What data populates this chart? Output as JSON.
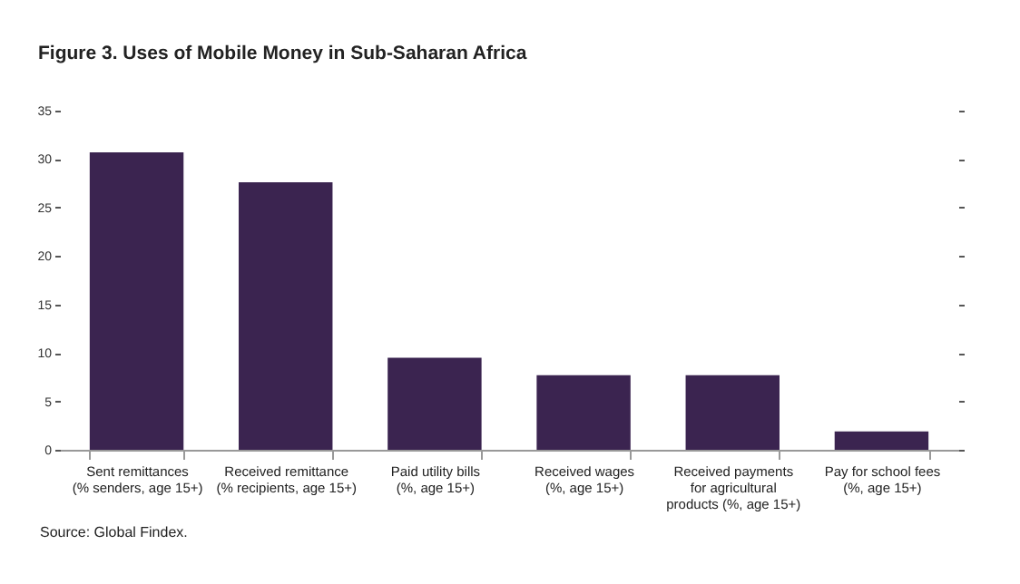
{
  "chart_data": {
    "type": "bar",
    "title": "Figure 3. Uses of Mobile Money in Sub-Saharan Africa",
    "categories": [
      "Sent remittances\n(% senders, age 15+)",
      "Received remittance\n(% recipients, age 15+)",
      "Paid utility bills\n(%, age 15+)",
      "Received wages\n(%, age 15+)",
      "Received payments\nfor agricultural\nproducts (%, age 15+)",
      "Pay for school fees\n(%, age 15+)"
    ],
    "values": [
      30.7,
      27.6,
      9.5,
      7.7,
      7.7,
      1.9
    ],
    "color": "#3b2450",
    "ylim": [
      0,
      35
    ],
    "yticks": [
      0,
      5,
      10,
      15,
      20,
      25,
      30,
      35
    ],
    "annotations": [
      "Source: Global Findex."
    ]
  }
}
